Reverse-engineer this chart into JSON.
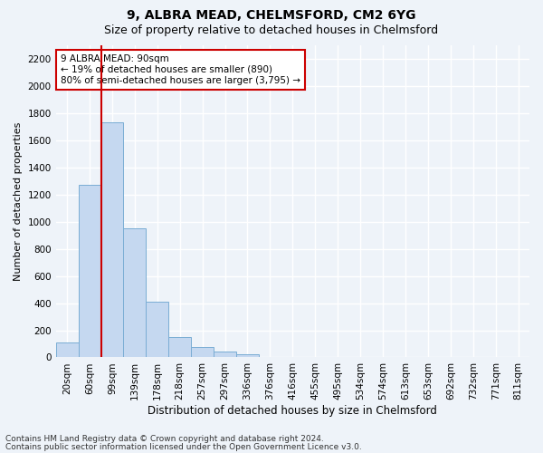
{
  "title1": "9, ALBRA MEAD, CHELMSFORD, CM2 6YG",
  "title2": "Size of property relative to detached houses in Chelmsford",
  "xlabel": "Distribution of detached houses by size in Chelmsford",
  "ylabel": "Number of detached properties",
  "bar_values": [
    110,
    1270,
    1730,
    950,
    410,
    150,
    75,
    40,
    25,
    5,
    2,
    1,
    0,
    0,
    0,
    0,
    0,
    0,
    0,
    0,
    0
  ],
  "bar_labels": [
    "20sqm",
    "60sqm",
    "99sqm",
    "139sqm",
    "178sqm",
    "218sqm",
    "257sqm",
    "297sqm",
    "336sqm",
    "376sqm",
    "416sqm",
    "455sqm",
    "495sqm",
    "534sqm",
    "574sqm",
    "613sqm",
    "653sqm",
    "692sqm",
    "732sqm",
    "771sqm",
    "811sqm"
  ],
  "bar_color": "#c5d8f0",
  "bar_edge_color": "#7aadd4",
  "vline_color": "#cc0000",
  "annotation_text": "9 ALBRA MEAD: 90sqm\n← 19% of detached houses are smaller (890)\n80% of semi-detached houses are larger (3,795) →",
  "annotation_box_color": "#ffffff",
  "annotation_box_edge": "#cc0000",
  "ylim": [
    0,
    2300
  ],
  "yticks": [
    0,
    200,
    400,
    600,
    800,
    1000,
    1200,
    1400,
    1600,
    1800,
    2000,
    2200
  ],
  "footnote1": "Contains HM Land Registry data © Crown copyright and database right 2024.",
  "footnote2": "Contains public sector information licensed under the Open Government Licence v3.0.",
  "bg_color": "#eef3f9",
  "grid_color": "#ffffff",
  "title1_fontsize": 10,
  "title2_fontsize": 9,
  "xlabel_fontsize": 8.5,
  "ylabel_fontsize": 8,
  "tick_fontsize": 7.5,
  "annotation_fontsize": 7.5,
  "footnote_fontsize": 6.5
}
